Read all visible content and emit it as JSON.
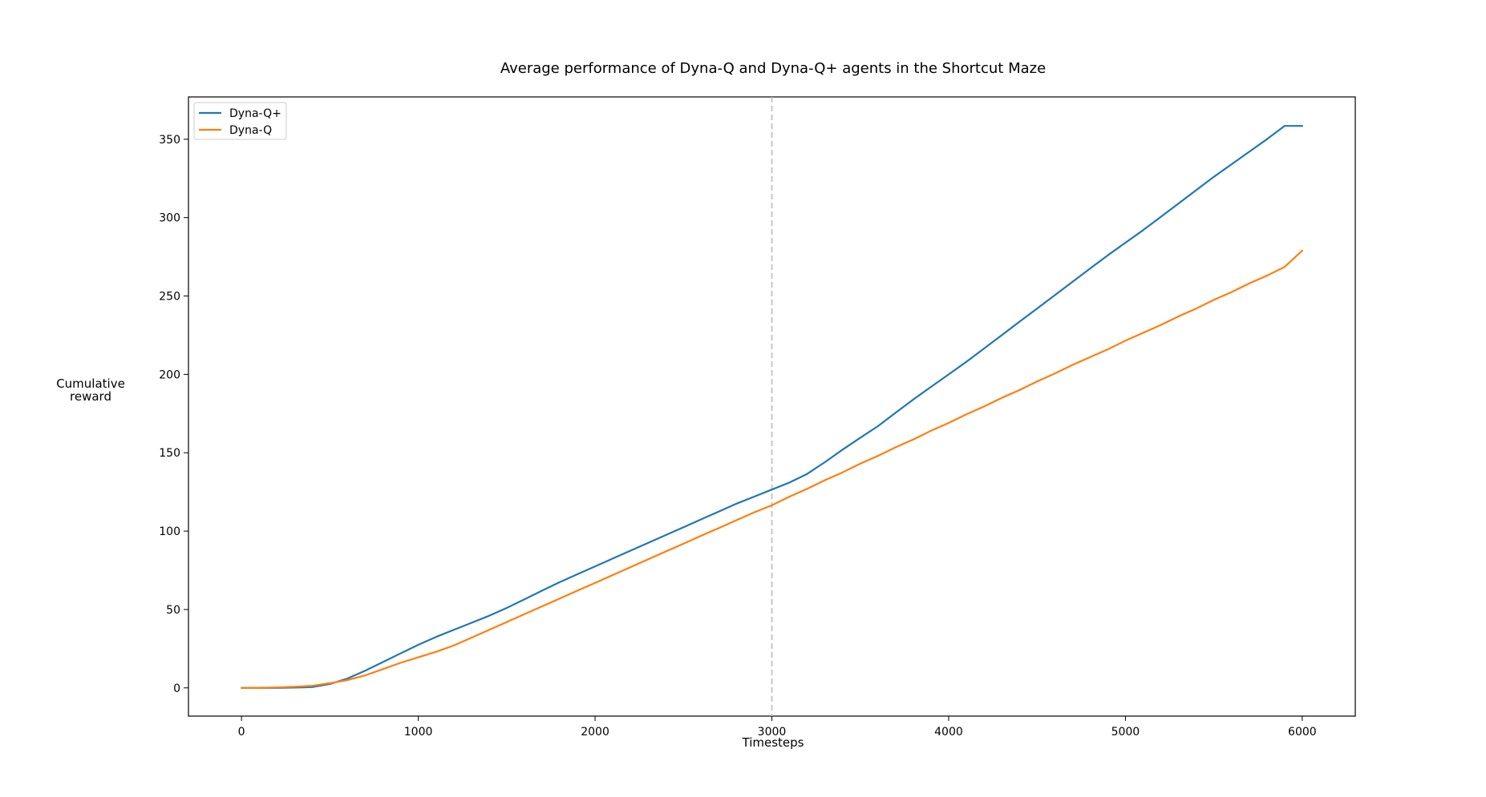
{
  "chart_data": {
    "type": "line",
    "title": "Average performance of Dyna-Q and Dyna-Q+ agents in the Shortcut Maze",
    "xlabel": "Timesteps",
    "ylabel": "Cumulative\nreward",
    "xlim": [
      -300,
      6300
    ],
    "ylim": [
      -18,
      377
    ],
    "xticks": [
      0,
      1000,
      2000,
      3000,
      4000,
      5000,
      6000
    ],
    "yticks": [
      0,
      50,
      100,
      150,
      200,
      250,
      300,
      350
    ],
    "grid": false,
    "legend": "top-left",
    "vline": {
      "x": 3000,
      "color": "#c0c0c0",
      "style": "dashed"
    },
    "series": [
      {
        "name": "Dyna-Q+",
        "color": "#1f77b4",
        "x": [
          0,
          100,
          200,
          300,
          400,
          500,
          600,
          700,
          800,
          900,
          1000,
          1100,
          1200,
          1300,
          1400,
          1500,
          1600,
          1700,
          1800,
          1900,
          2000,
          2100,
          2200,
          2300,
          2400,
          2500,
          2600,
          2700,
          2800,
          2900,
          3000,
          3100,
          3200,
          3300,
          3400,
          3500,
          3600,
          3700,
          3800,
          3900,
          4000,
          4100,
          4200,
          4300,
          4400,
          4500,
          4600,
          4700,
          4800,
          4900,
          5000,
          5100,
          5200,
          5300,
          5400,
          5500,
          5600,
          5700,
          5800,
          5900,
          6000
        ],
        "values": [
          0,
          0,
          0,
          0.2,
          0.5,
          2.5,
          6,
          11,
          16.5,
          22,
          27.5,
          32.5,
          37,
          41.5,
          46,
          51,
          56.5,
          62,
          67.5,
          72.5,
          77.5,
          82.5,
          87.5,
          92.5,
          97.5,
          102.5,
          107.5,
          112.5,
          117.5,
          122,
          126.5,
          131,
          136.5,
          144,
          152,
          159.5,
          167,
          175.5,
          184,
          192,
          200,
          208,
          216.5,
          225,
          233.5,
          242,
          250.5,
          259,
          267.5,
          276,
          284,
          292,
          300.5,
          309,
          317.5,
          326,
          334,
          342,
          350,
          358.5,
          358.5
        ]
      },
      {
        "name": "Dyna-Q",
        "color": "#ff7f0e",
        "x": [
          0,
          100,
          200,
          300,
          400,
          500,
          600,
          700,
          800,
          900,
          1000,
          1100,
          1200,
          1300,
          1400,
          1500,
          1600,
          1700,
          1800,
          1900,
          2000,
          2100,
          2200,
          2300,
          2400,
          2500,
          2600,
          2700,
          2800,
          2900,
          3000,
          3100,
          3200,
          3300,
          3400,
          3500,
          3600,
          3700,
          3800,
          3900,
          4000,
          4100,
          4200,
          4300,
          4400,
          4500,
          4600,
          4700,
          4800,
          4900,
          5000,
          5100,
          5200,
          5300,
          5400,
          5500,
          5600,
          5700,
          5800,
          5900,
          6000
        ],
        "values": [
          0,
          0.1,
          0.3,
          0.7,
          1.3,
          3,
          5,
          8,
          12,
          16,
          19.5,
          23,
          27,
          32,
          37,
          42,
          47,
          52,
          57,
          62,
          67,
          72,
          77,
          82,
          87,
          92,
          97,
          102,
          107,
          112,
          116.5,
          122,
          127,
          132.5,
          137.5,
          143,
          148,
          153.5,
          158.5,
          164,
          169,
          174.5,
          179.5,
          185,
          190,
          195.5,
          200.5,
          206,
          211,
          216,
          221.5,
          226.5,
          231.5,
          237,
          242,
          247.5,
          252.5,
          258,
          263,
          268.5,
          279
        ]
      }
    ]
  }
}
